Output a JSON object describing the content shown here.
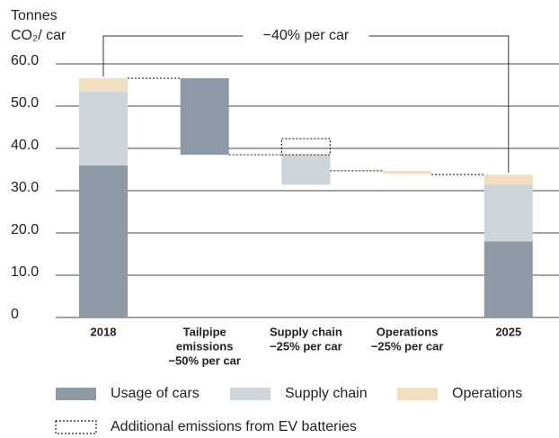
{
  "chart_data": {
    "type": "waterfall",
    "y_label": [
      "Tonnes",
      "CO₂/ car"
    ],
    "annotation": "−40% per car",
    "ylim": [
      0,
      60
    ],
    "yticks": [
      0,
      {
        "value": 10,
        "label": "10.0"
      },
      {
        "value": 20,
        "label": "20.0"
      },
      {
        "value": 30,
        "label": "30.0"
      },
      {
        "value": 40,
        "label": "40.0"
      },
      {
        "value": 50,
        "label": "50.0"
      },
      {
        "value": 60,
        "label": "60.0"
      }
    ],
    "grid": true,
    "series": [
      {
        "name": "Usage of cars",
        "color": "#8d9aa6"
      },
      {
        "name": "Supply chain",
        "color": "#cdd5da"
      },
      {
        "name": "Operations",
        "color": "#f2dfc0"
      },
      {
        "name": "Additional emissions from EV batteries",
        "color": "#222222",
        "dashed": true
      }
    ],
    "columns": [
      {
        "label": [
          "2018"
        ],
        "stack": [
          36,
          17.4,
          3.2
        ]
      },
      {
        "label": [
          "Tailpipe",
          "emissions",
          "−50% per car"
        ],
        "ranges": [
          {
            "series": 0,
            "from": 56.6,
            "to": 38.5
          }
        ]
      },
      {
        "label": [
          "Supply chain",
          "−25% per car"
        ],
        "ranges": [
          {
            "series": 1,
            "from": 38.5,
            "to": 31.4
          },
          {
            "series": 3,
            "from": 38.5,
            "to": 42.3
          }
        ]
      },
      {
        "label": [
          "Operations",
          "−25% per car"
        ],
        "ranges": [
          {
            "series": 2,
            "from": 34.7,
            "to": 34.0
          }
        ]
      },
      {
        "label": [
          "2025"
        ],
        "stack": [
          18,
          13.4,
          2.4
        ]
      }
    ]
  }
}
